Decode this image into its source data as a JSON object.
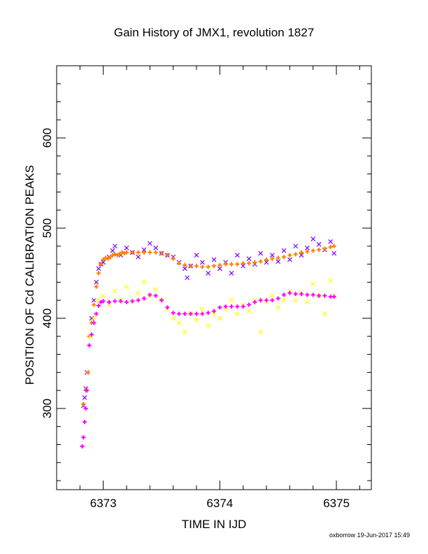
{
  "chart_data": {
    "type": "scatter",
    "title": "Gain History of JMX1, revolution 1827",
    "xlabel": "TIME IN IJD",
    "ylabel": "POSITION OF Cd CALIBRATION PEAKS",
    "xlim": [
      6372.6,
      6375.3
    ],
    "ylim": [
      210,
      680
    ],
    "x_ticks": [
      6373,
      6374,
      6375
    ],
    "x_tick_labels": [
      "6373",
      "6374",
      "6375"
    ],
    "y_ticks": [
      300,
      400,
      500,
      600
    ],
    "y_tick_labels": [
      "300",
      "400",
      "500",
      "600"
    ],
    "grid": false,
    "legend": "none",
    "footer": "oxborrow 19-Jun-2017 15:49",
    "series": [
      {
        "marker": "x",
        "color": "#8000ff",
        "points": [
          [
            6372.83,
            303
          ],
          [
            6372.84,
            312
          ],
          [
            6372.85,
            322
          ],
          [
            6372.86,
            340
          ],
          [
            6372.89,
            380
          ],
          [
            6372.9,
            400
          ],
          [
            6372.92,
            420
          ],
          [
            6372.94,
            440
          ],
          [
            6372.96,
            455
          ],
          [
            6372.98,
            460
          ],
          [
            6373.0,
            462
          ],
          [
            6373.05,
            468
          ],
          [
            6373.08,
            475
          ],
          [
            6373.1,
            480
          ],
          [
            6373.15,
            470
          ],
          [
            6373.2,
            478
          ],
          [
            6373.25,
            473
          ],
          [
            6373.3,
            468
          ],
          [
            6373.35,
            476
          ],
          [
            6373.4,
            483
          ],
          [
            6373.45,
            478
          ],
          [
            6373.5,
            472
          ],
          [
            6373.55,
            470
          ],
          [
            6373.6,
            468
          ],
          [
            6373.65,
            462
          ],
          [
            6373.7,
            455
          ],
          [
            6373.72,
            445
          ],
          [
            6373.75,
            458
          ],
          [
            6373.8,
            470
          ],
          [
            6373.85,
            462
          ],
          [
            6373.9,
            450
          ],
          [
            6373.95,
            465
          ],
          [
            6374.0,
            455
          ],
          [
            6374.05,
            462
          ],
          [
            6374.1,
            450
          ],
          [
            6374.15,
            470
          ],
          [
            6374.2,
            458
          ],
          [
            6374.25,
            466
          ],
          [
            6374.3,
            460
          ],
          [
            6374.35,
            472
          ],
          [
            6374.4,
            462
          ],
          [
            6374.45,
            470
          ],
          [
            6374.5,
            463
          ],
          [
            6374.55,
            475
          ],
          [
            6374.6,
            465
          ],
          [
            6374.65,
            480
          ],
          [
            6374.7,
            470
          ],
          [
            6374.75,
            478
          ],
          [
            6374.8,
            488
          ],
          [
            6374.85,
            482
          ],
          [
            6374.9,
            476
          ],
          [
            6374.95,
            485
          ],
          [
            6374.98,
            472
          ]
        ]
      },
      {
        "marker": "plus",
        "color": "#ff8000",
        "points": [
          [
            6372.83,
            305
          ],
          [
            6372.85,
            320
          ],
          [
            6372.87,
            340
          ],
          [
            6372.88,
            380
          ],
          [
            6372.9,
            395
          ],
          [
            6372.92,
            415
          ],
          [
            6372.94,
            435
          ],
          [
            6372.96,
            450
          ],
          [
            6372.98,
            460
          ],
          [
            6373.0,
            465
          ],
          [
            6373.02,
            467
          ],
          [
            6373.04,
            466
          ],
          [
            6373.06,
            468
          ],
          [
            6373.08,
            470
          ],
          [
            6373.1,
            471
          ],
          [
            6373.12,
            470
          ],
          [
            6373.14,
            471
          ],
          [
            6373.16,
            473
          ],
          [
            6373.18,
            472
          ],
          [
            6373.2,
            473
          ],
          [
            6373.25,
            473
          ],
          [
            6373.3,
            473
          ],
          [
            6373.35,
            473
          ],
          [
            6373.4,
            473
          ],
          [
            6373.45,
            473
          ],
          [
            6373.5,
            472
          ],
          [
            6373.55,
            470
          ],
          [
            6373.6,
            466
          ],
          [
            6373.65,
            461
          ],
          [
            6373.7,
            459
          ],
          [
            6373.75,
            458
          ],
          [
            6373.8,
            458
          ],
          [
            6373.85,
            457
          ],
          [
            6373.9,
            457
          ],
          [
            6373.95,
            458
          ],
          [
            6374.0,
            459
          ],
          [
            6374.05,
            460
          ],
          [
            6374.1,
            460
          ],
          [
            6374.15,
            460
          ],
          [
            6374.2,
            461
          ],
          [
            6374.25,
            461
          ],
          [
            6374.3,
            462
          ],
          [
            6374.35,
            463
          ],
          [
            6374.4,
            465
          ],
          [
            6374.45,
            466
          ],
          [
            6374.5,
            467
          ],
          [
            6374.55,
            468
          ],
          [
            6374.6,
            470
          ],
          [
            6374.65,
            471
          ],
          [
            6374.7,
            473
          ],
          [
            6374.75,
            474
          ],
          [
            6374.8,
            475
          ],
          [
            6374.85,
            476
          ],
          [
            6374.9,
            477
          ],
          [
            6374.95,
            479
          ],
          [
            6374.98,
            480
          ]
        ]
      },
      {
        "marker": "x",
        "color": "#ffff00",
        "points": [
          [
            6372.89,
            380
          ],
          [
            6372.92,
            400
          ],
          [
            6372.95,
            420
          ],
          [
            6373.0,
            425
          ],
          [
            6373.05,
            415
          ],
          [
            6373.1,
            430
          ],
          [
            6373.15,
            420
          ],
          [
            6373.2,
            435
          ],
          [
            6373.25,
            418
          ],
          [
            6373.3,
            428
          ],
          [
            6373.35,
            440
          ],
          [
            6373.4,
            425
          ],
          [
            6373.45,
            432
          ],
          [
            6373.5,
            420
          ],
          [
            6373.55,
            410
          ],
          [
            6373.6,
            400
          ],
          [
            6373.65,
            395
          ],
          [
            6373.7,
            385
          ],
          [
            6373.75,
            405
          ],
          [
            6373.8,
            398
          ],
          [
            6373.85,
            410
          ],
          [
            6373.9,
            392
          ],
          [
            6373.95,
            405
          ],
          [
            6374.0,
            400
          ],
          [
            6374.05,
            410
          ],
          [
            6374.1,
            420
          ],
          [
            6374.15,
            405
          ],
          [
            6374.2,
            415
          ],
          [
            6374.25,
            408
          ],
          [
            6374.3,
            420
          ],
          [
            6374.35,
            385
          ],
          [
            6374.4,
            418
          ],
          [
            6374.45,
            425
          ],
          [
            6374.5,
            412
          ],
          [
            6374.55,
            420
          ],
          [
            6374.6,
            430
          ],
          [
            6374.65,
            420
          ],
          [
            6374.7,
            428
          ],
          [
            6374.75,
            418
          ],
          [
            6374.8,
            438
          ],
          [
            6374.85,
            425
          ],
          [
            6374.9,
            405
          ],
          [
            6374.95,
            442
          ],
          [
            6374.98,
            425
          ]
        ]
      },
      {
        "marker": "plus",
        "color": "#ff00ff",
        "points": [
          [
            6372.82,
            258
          ],
          [
            6372.83,
            268
          ],
          [
            6372.84,
            285
          ],
          [
            6372.85,
            300
          ],
          [
            6372.86,
            320
          ],
          [
            6372.88,
            370
          ],
          [
            6372.9,
            382
          ],
          [
            6372.92,
            395
          ],
          [
            6372.94,
            405
          ],
          [
            6372.96,
            414
          ],
          [
            6372.98,
            418
          ],
          [
            6373.0,
            419
          ],
          [
            6373.05,
            418
          ],
          [
            6373.1,
            419
          ],
          [
            6373.15,
            419
          ],
          [
            6373.2,
            418
          ],
          [
            6373.25,
            419
          ],
          [
            6373.3,
            420
          ],
          [
            6373.35,
            422
          ],
          [
            6373.4,
            426
          ],
          [
            6373.45,
            425
          ],
          [
            6373.5,
            420
          ],
          [
            6373.55,
            412
          ],
          [
            6373.6,
            406
          ],
          [
            6373.65,
            405
          ],
          [
            6373.7,
            405
          ],
          [
            6373.75,
            405
          ],
          [
            6373.8,
            405
          ],
          [
            6373.85,
            405
          ],
          [
            6373.9,
            406
          ],
          [
            6373.95,
            408
          ],
          [
            6374.0,
            412
          ],
          [
            6374.05,
            413
          ],
          [
            6374.1,
            413
          ],
          [
            6374.15,
            413
          ],
          [
            6374.2,
            413
          ],
          [
            6374.25,
            415
          ],
          [
            6374.3,
            418
          ],
          [
            6374.35,
            420
          ],
          [
            6374.4,
            420
          ],
          [
            6374.45,
            420
          ],
          [
            6374.5,
            422
          ],
          [
            6374.55,
            426
          ],
          [
            6374.6,
            428
          ],
          [
            6374.65,
            427
          ],
          [
            6374.7,
            427
          ],
          [
            6374.75,
            426
          ],
          [
            6374.8,
            426
          ],
          [
            6374.85,
            425
          ],
          [
            6374.9,
            425
          ],
          [
            6374.95,
            424
          ],
          [
            6374.98,
            424
          ]
        ]
      }
    ]
  }
}
